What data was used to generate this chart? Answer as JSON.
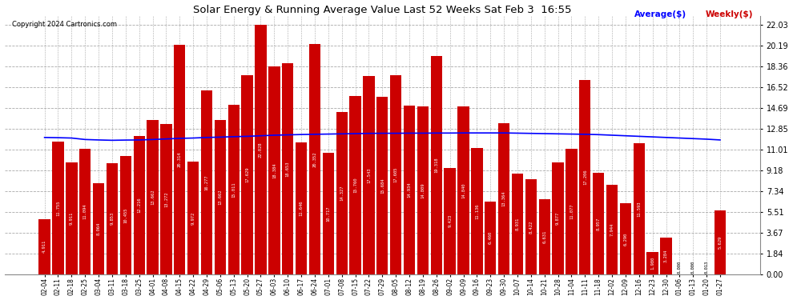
{
  "title": "Solar Energy & Running Average Value Last 52 Weeks Sat Feb 3  16:55",
  "copyright": "Copyright 2024 Cartronics.com",
  "legend_avg": "Average($)",
  "legend_weekly": "Weekly($)",
  "categories": [
    "02-04",
    "02-11",
    "02-18",
    "02-25",
    "03-04",
    "03-11",
    "03-18",
    "03-25",
    "04-01",
    "04-08",
    "04-15",
    "04-22",
    "04-29",
    "05-06",
    "05-13",
    "05-20",
    "05-27",
    "06-03",
    "06-10",
    "06-17",
    "06-24",
    "07-01",
    "07-08",
    "07-15",
    "07-22",
    "07-29",
    "08-05",
    "08-12",
    "08-19",
    "08-26",
    "09-02",
    "09-09",
    "09-16",
    "09-23",
    "09-30",
    "10-07",
    "10-14",
    "10-21",
    "10-28",
    "11-04",
    "11-11",
    "11-18",
    "12-02",
    "12-09",
    "12-16",
    "12-23",
    "12-30",
    "01-06",
    "01-13",
    "01-20",
    "01-27"
  ],
  "weekly_values": [
    4.911,
    11.755,
    9.911,
    11.094,
    8.064,
    9.853,
    10.455,
    12.216,
    13.662,
    13.272,
    20.314,
    9.972,
    16.277,
    13.662,
    15.011,
    17.629,
    22.028,
    18.384,
    18.653,
    11.646,
    20.352,
    10.717,
    14.327,
    15.76,
    17.543,
    15.684,
    17.605,
    14.934,
    14.809,
    19.318,
    9.423,
    14.84,
    11.136,
    6.46,
    13.364,
    8.931,
    8.422,
    6.631,
    9.877,
    11.077,
    17.206,
    8.957,
    7.944,
    6.29,
    11.593,
    1.98,
    3.284,
    0.0,
    0.0,
    0.013,
    5.629
  ],
  "avg_values": [
    12.1,
    12.08,
    12.05,
    11.92,
    11.88,
    11.85,
    11.87,
    11.88,
    11.92,
    11.97,
    12.02,
    12.05,
    12.1,
    12.13,
    12.17,
    12.2,
    12.25,
    12.3,
    12.33,
    12.36,
    12.38,
    12.4,
    12.42,
    12.44,
    12.46,
    12.47,
    12.47,
    12.48,
    12.48,
    12.49,
    12.49,
    12.5,
    12.5,
    12.5,
    12.5,
    12.48,
    12.46,
    12.44,
    12.42,
    12.4,
    12.38,
    12.35,
    12.3,
    12.25,
    12.2,
    12.15,
    12.1,
    12.05,
    12.0,
    11.95,
    11.88
  ],
  "bar_color": "#cc0000",
  "avg_line_color": "#0000ff",
  "bg_color": "#ffffff",
  "grid_color": "#aaaaaa",
  "yticks": [
    0.0,
    1.84,
    3.67,
    5.51,
    7.34,
    9.18,
    11.01,
    12.85,
    14.69,
    16.52,
    18.36,
    20.19,
    22.03
  ],
  "ymax": 22.85
}
